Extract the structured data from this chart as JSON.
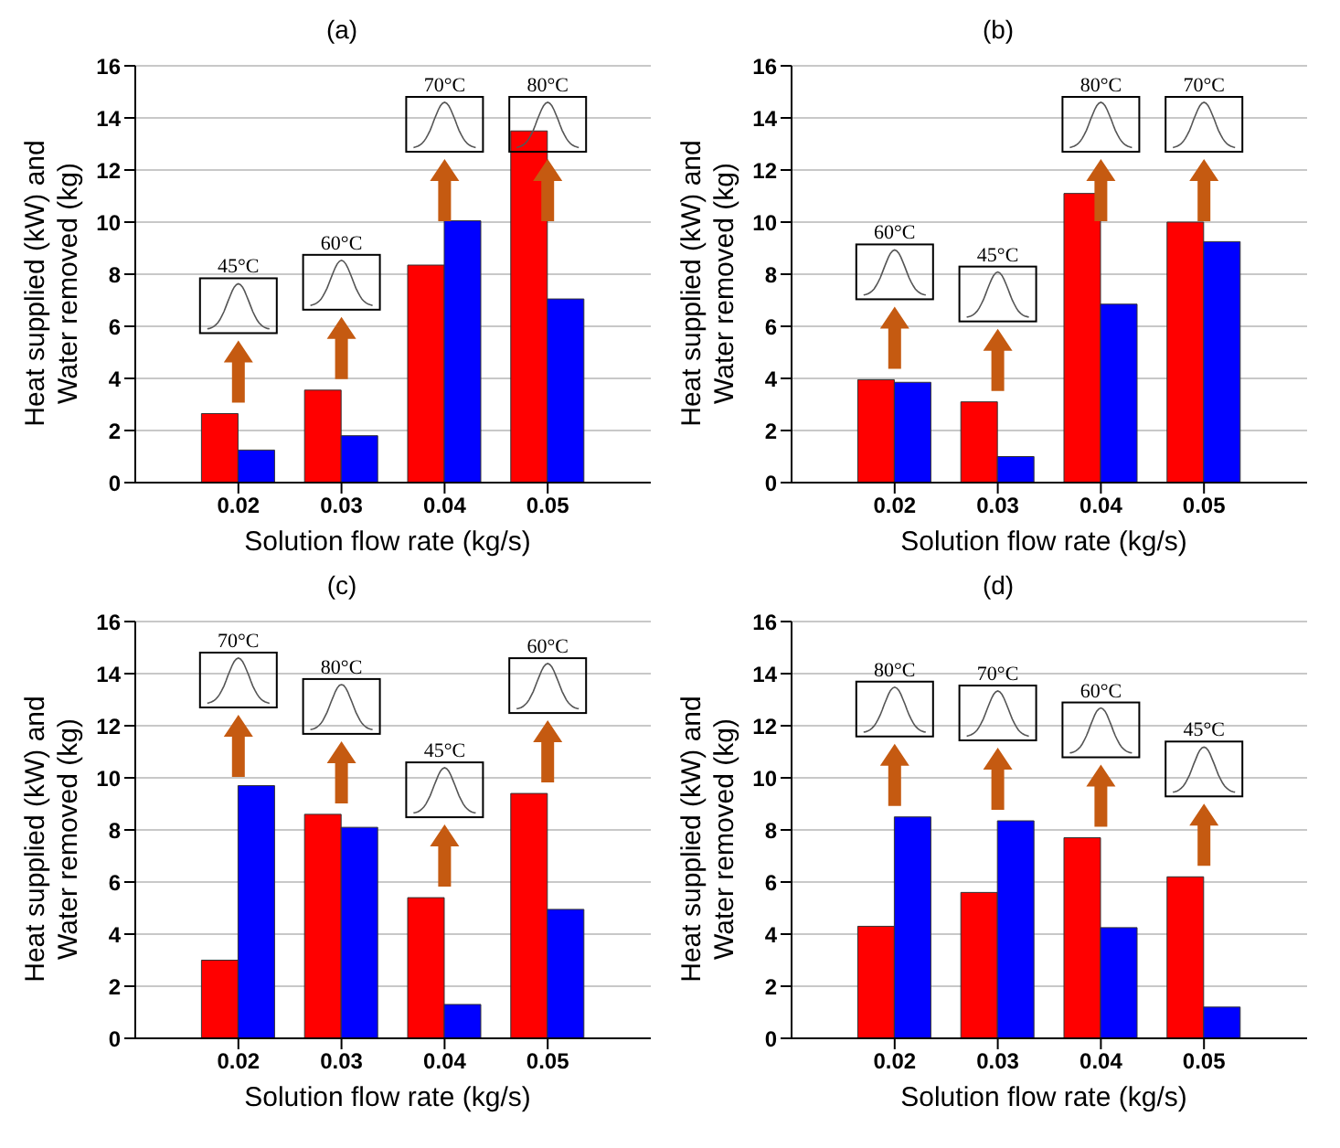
{
  "chart_data": [
    {
      "type": "bar",
      "title": "(a)",
      "xlabel": "Solution flow rate (kg/s)",
      "ylabel": "Heat supplied (kW) and Water removed (kg)",
      "x": [
        0.02,
        0.03,
        0.04,
        0.05
      ],
      "xlim": [
        0.01,
        0.06
      ],
      "xticks": [
        0.02,
        0.03,
        0.04,
        0.05
      ],
      "ylim": [
        0,
        16
      ],
      "yticks": [
        0,
        2,
        4,
        6,
        8,
        10,
        12,
        14,
        16
      ],
      "grid": "y",
      "series": [
        {
          "color": "#ff0000",
          "values": [
            2.65,
            3.55,
            8.35,
            13.5
          ]
        },
        {
          "color": "#0000ff",
          "values": [
            1.25,
            1.8,
            10.05,
            7.05
          ]
        }
      ],
      "annotations": [
        "45°C",
        "60°C",
        "70°C",
        "80°C"
      ]
    },
    {
      "type": "bar",
      "title": "(b)",
      "xlabel": "Solution flow rate (kg/s)",
      "ylabel": "Heat supplied (kW) and Water removed (kg)",
      "x": [
        0.02,
        0.03,
        0.04,
        0.05
      ],
      "xlim": [
        0.01,
        0.06
      ],
      "xticks": [
        0.02,
        0.03,
        0.04,
        0.05
      ],
      "ylim": [
        0,
        16
      ],
      "yticks": [
        0,
        2,
        4,
        6,
        8,
        10,
        12,
        14,
        16
      ],
      "grid": "y",
      "series": [
        {
          "color": "#ff0000",
          "values": [
            3.95,
            3.1,
            11.1,
            10.0
          ]
        },
        {
          "color": "#0000ff",
          "values": [
            3.85,
            1.0,
            6.85,
            9.25
          ]
        }
      ],
      "annotations": [
        "60°C",
        "45°C",
        "80°C",
        "70°C"
      ]
    },
    {
      "type": "bar",
      "title": "(c)",
      "xlabel": "Solution flow rate (kg/s)",
      "ylabel": "Heat supplied (kW) and Water removed (kg)",
      "x": [
        0.02,
        0.03,
        0.04,
        0.05
      ],
      "xlim": [
        0.01,
        0.06
      ],
      "xticks": [
        0.02,
        0.03,
        0.04,
        0.05
      ],
      "ylim": [
        0,
        16
      ],
      "yticks": [
        0,
        2,
        4,
        6,
        8,
        10,
        12,
        14,
        16
      ],
      "grid": "y",
      "series": [
        {
          "color": "#ff0000",
          "values": [
            3.0,
            8.6,
            5.4,
            9.4
          ]
        },
        {
          "color": "#0000ff",
          "values": [
            9.7,
            8.1,
            1.3,
            4.95
          ]
        }
      ],
      "annotations": [
        "70°C",
        "80°C",
        "45°C",
        "60°C"
      ]
    },
    {
      "type": "bar",
      "title": "(d)",
      "xlabel": "Solution flow rate (kg/s)",
      "ylabel": "Heat supplied (kW) and Water removed (kg)",
      "x": [
        0.02,
        0.03,
        0.04,
        0.05
      ],
      "xlim": [
        0.01,
        0.06
      ],
      "xticks": [
        0.02,
        0.03,
        0.04,
        0.05
      ],
      "ylim": [
        0,
        16
      ],
      "yticks": [
        0,
        2,
        4,
        6,
        8,
        10,
        12,
        14,
        16
      ],
      "grid": "y",
      "series": [
        {
          "color": "#ff0000",
          "values": [
            4.3,
            5.6,
            7.7,
            6.2
          ]
        },
        {
          "color": "#0000ff",
          "values": [
            8.5,
            8.35,
            4.25,
            1.2
          ]
        }
      ],
      "annotations": [
        "80°C",
        "70°C",
        "60°C",
        "45°C"
      ]
    }
  ]
}
